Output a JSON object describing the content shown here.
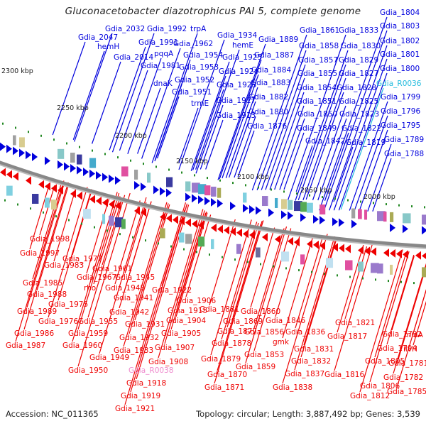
{
  "title": "Gluconacetobacter diazotrophicus PAI 5, complete genome",
  "footer": {
    "accession": "Accession: NC_011365",
    "summary": "Topology: circular; Length: 3,887,492 bp; Genes: 3,539"
  },
  "colors": {
    "forward": "#0000dd",
    "reverse": "#ee0000",
    "forward_rna": "#22bbdd",
    "reverse_rna": "#ee88cc",
    "backbone": "#888888",
    "tick": "#228822"
  },
  "ticks": [
    {
      "label": "2300 kbp"
    },
    {
      "label": "2250 kbp"
    },
    {
      "label": "2200 kbp"
    },
    {
      "label": "2150 kbp"
    },
    {
      "label": "2100 kbp"
    },
    {
      "label": "2050 kbp"
    },
    {
      "label": "2000 kbp"
    }
  ],
  "forward_labels": [
    "Gdia_2047",
    "Gdia_2032",
    "hemH",
    "Gdia_2014",
    "Gdia_1992",
    "Gdia_1991",
    "pqqA",
    "Gdia_1981",
    "dnaK",
    "trpA",
    "Gdia_1962",
    "Gdia_1954",
    "Gdia_1953",
    "Gdia_1952",
    "Gdia_1951",
    "trmE",
    "Gdia_1934",
    "hemE",
    "Gdia_1925",
    "Gdia_1924",
    "Gdia_1923",
    "Gdia_1917",
    "Gdia_1913",
    "Gdia_1889",
    "Gdia_1887",
    "Gdia_1884",
    "Gdia_1883",
    "Gdia_1882",
    "Gdia_1880",
    "Gdia_1876",
    "Gdia_1861",
    "Gdia_1858",
    "Gdia_1857",
    "Gdia_1855",
    "Gdia_1854",
    "Gdia_1851",
    "Gdia_1850",
    "Gdia_1849",
    "Gdia_1842",
    "Gdia_1833",
    "Gdia_1830",
    "Gdia_1829",
    "Gdia_1827",
    "Gdia_1828",
    "Gdia_1825",
    "Gdia_1823",
    "Gdia_1822",
    "Gdia_1819",
    "Gdia_1804",
    "Gdia_1803",
    "Gdia_1802",
    "Gdia_1801",
    "Gdia_1800",
    "Gdia_R0036",
    "Gdia_1799",
    "Gdia_1796",
    "Gdia_1795",
    "Gdia_1789",
    "Gdia_1788"
  ],
  "reverse_labels": [
    "Gdia_1998",
    "Gdia_1997",
    "Gdia_1977",
    "Gdia_1983",
    "Gdia_1961",
    "Gdia_1967",
    "Gdia_1945",
    "Gdia_1985",
    "rho",
    "Gdia_1948",
    "Gdia_1988",
    "Gdia_1975",
    "Gdia_1941",
    "Gdia_1922",
    "Gdia_1906",
    "Gdia_1989",
    "Gdia_1942",
    "Gdia_1915",
    "Gdia_1976",
    "Gdia_1955",
    "Gdia_1931",
    "Gdia_1904",
    "Gdia_1986",
    "Gdia_1959",
    "Gdia_1932",
    "Gdia_1905",
    "Gdia_1987",
    "Gdia_1960",
    "Gdia_1933",
    "Gdia_1907",
    "Gdia_1949",
    "Gdia_1908",
    "Gdia_1950",
    "Gdia_R0038",
    "Gdia_1918",
    "Gdia_1919",
    "Gdia_1921",
    "Gdia_1881",
    "Gdia_1860",
    "Gdia_1869",
    "Gdia_1846",
    "Gdia_1877",
    "Gdia_1856",
    "Gdia_1836",
    "Gdia_1878",
    "gmk",
    "Gdia_1831",
    "Gdia_1853",
    "Gdia_1879",
    "Gdia_1832",
    "Gdia_1859",
    "Gdia_1837",
    "Gdia_1870",
    "Gdia_1838",
    "Gdia_1871",
    "Gdia_1821",
    "Gdia_1817",
    "Gdia_1792",
    "miaA",
    "Gdia_1794",
    "ilvH",
    "Gdia_1805",
    "Gdia_1781",
    "Gdia_1816",
    "Gdia_1782",
    "Gdia_1806",
    "Gdia_1785",
    "Gdia_1812"
  ]
}
